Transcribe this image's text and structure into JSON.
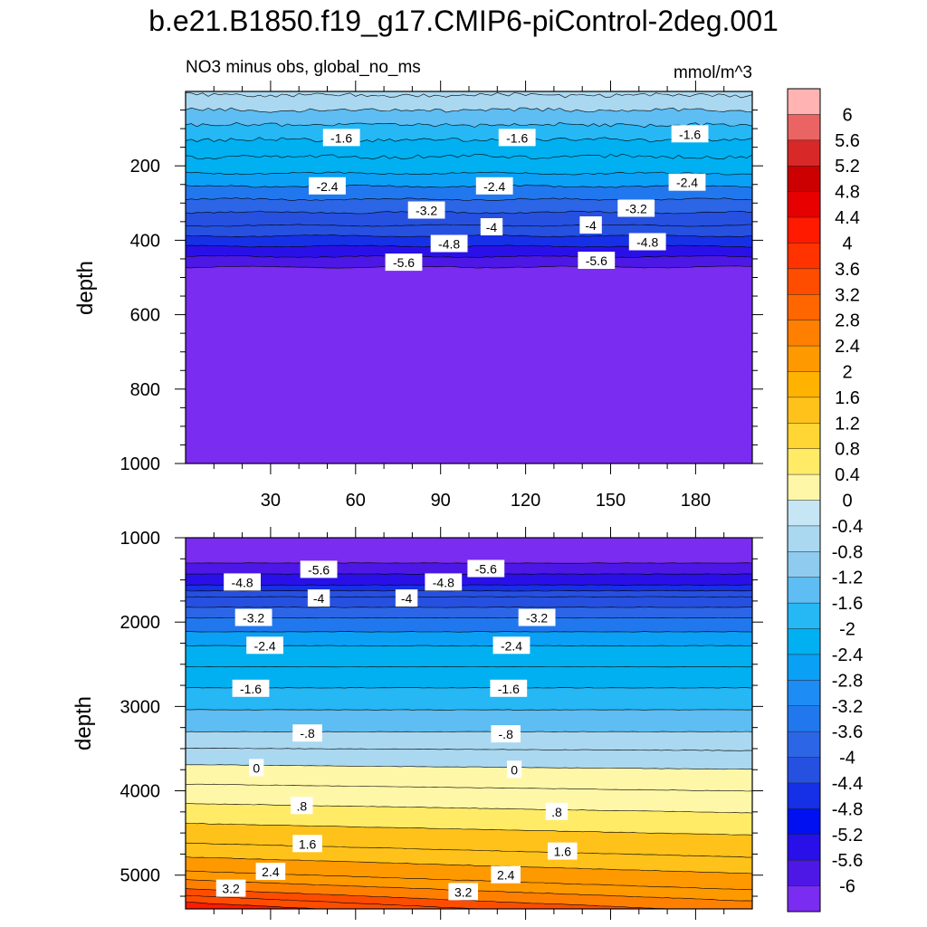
{
  "title": "b.e21.B1850.f19_g17.CMIP6-piControl-2deg.001",
  "subtitle_left": "NO3 minus obs, global_no_ms",
  "subtitle_right": "mmol/m^3",
  "colorbar": {
    "labels": [
      "6",
      "5.6",
      "5.2",
      "4.8",
      "4.4",
      "4",
      "3.6",
      "3.2",
      "2.8",
      "2.4",
      "2",
      "1.6",
      "1.2",
      "0.8",
      "0.4",
      "0",
      "-0.4",
      "-0.8",
      "-1.2",
      "-1.6",
      "-2",
      "-2.4",
      "-2.8",
      "-3.2",
      "-3.6",
      "-4",
      "-4.4",
      "-4.8",
      "-5.2",
      "-5.6",
      "-6"
    ],
    "colors": [
      "#ffb3b3",
      "#eb6464",
      "#d92828",
      "#cc0000",
      "#e60000",
      "#ff1a00",
      "#ff3300",
      "#ff4d00",
      "#ff6600",
      "#ff8000",
      "#ff9900",
      "#ffb300",
      "#ffc21a",
      "#ffd633",
      "#ffeb66",
      "#fff7a8",
      "#c6e6f5",
      "#aad8f0",
      "#8ecbee",
      "#5ebdf2",
      "#26b7f5",
      "#00b0f0",
      "#0aa0f5",
      "#1d8cf5",
      "#2178ee",
      "#2c66e6",
      "#2650e0",
      "#1530e6",
      "#0010f0",
      "#2a10e8",
      "#4d18e6",
      "#7a2cf0"
    ]
  },
  "chart_data": [
    {
      "type": "heatmap",
      "panel": "upper",
      "ylabel": "depth",
      "xlim": [
        0,
        200
      ],
      "ylim": [
        1000,
        0
      ],
      "xticks": [
        "30",
        "60",
        "90",
        "120",
        "150",
        "180"
      ],
      "yticks": [
        "200",
        "400",
        "600",
        "800",
        "1000"
      ],
      "contour_labels": [
        {
          "text": "-1.6",
          "x": 55,
          "y": 125
        },
        {
          "text": "-1.6",
          "x": 117,
          "y": 125
        },
        {
          "text": "-1.6",
          "x": 178,
          "y": 115
        },
        {
          "text": "-2.4",
          "x": 50,
          "y": 255
        },
        {
          "text": "-2.4",
          "x": 109,
          "y": 255
        },
        {
          "text": "-2.4",
          "x": 177,
          "y": 245
        },
        {
          "text": "-3.2",
          "x": 85,
          "y": 320
        },
        {
          "text": "-3.2",
          "x": 159,
          "y": 315
        },
        {
          "text": "-4",
          "x": 108,
          "y": 365
        },
        {
          "text": "-4",
          "x": 143,
          "y": 360
        },
        {
          "text": "-4.8",
          "x": 93,
          "y": 410
        },
        {
          "text": "-4.8",
          "x": 163,
          "y": 405
        },
        {
          "text": "-5.6",
          "x": 77,
          "y": 460
        },
        {
          "text": "-5.6",
          "x": 145,
          "y": 455
        }
      ]
    },
    {
      "type": "heatmap",
      "panel": "lower",
      "ylabel": "depth",
      "xlim": [
        0,
        200
      ],
      "ylim": [
        5400,
        1000
      ],
      "yticks": [
        "1000",
        "2000",
        "3000",
        "4000",
        "5000"
      ],
      "contour_labels": [
        {
          "text": "-5.6",
          "x": 47,
          "y": 1380
        },
        {
          "text": "-5.6",
          "x": 106,
          "y": 1370
        },
        {
          "text": "-4.8",
          "x": 20,
          "y": 1530
        },
        {
          "text": "-4.8",
          "x": 91,
          "y": 1530
        },
        {
          "text": "-4",
          "x": 47,
          "y": 1720
        },
        {
          "text": "-4",
          "x": 78,
          "y": 1720
        },
        {
          "text": "-3.2",
          "x": 24,
          "y": 1950
        },
        {
          "text": "-3.2",
          "x": 124,
          "y": 1950
        },
        {
          "text": "-2.4",
          "x": 28,
          "y": 2280
        },
        {
          "text": "-2.4",
          "x": 115,
          "y": 2280
        },
        {
          "text": "-1.6",
          "x": 23,
          "y": 2790
        },
        {
          "text": "-1.6",
          "x": 114,
          "y": 2790
        },
        {
          "text": "-.8",
          "x": 43,
          "y": 3320
        },
        {
          "text": "-.8",
          "x": 113,
          "y": 3330
        },
        {
          "text": "0",
          "x": 25,
          "y": 3730
        },
        {
          "text": "0",
          "x": 116,
          "y": 3750
        },
        {
          "text": ".8",
          "x": 41,
          "y": 4180
        },
        {
          "text": ".8",
          "x": 131,
          "y": 4250
        },
        {
          "text": "1.6",
          "x": 43,
          "y": 4630
        },
        {
          "text": "1.6",
          "x": 133,
          "y": 4720
        },
        {
          "text": "2.4",
          "x": 30,
          "y": 4960
        },
        {
          "text": "2.4",
          "x": 113,
          "y": 5000
        },
        {
          "text": "3.2",
          "x": 16,
          "y": 5160
        },
        {
          "text": "3.2",
          "x": 98,
          "y": 5200
        }
      ]
    }
  ]
}
